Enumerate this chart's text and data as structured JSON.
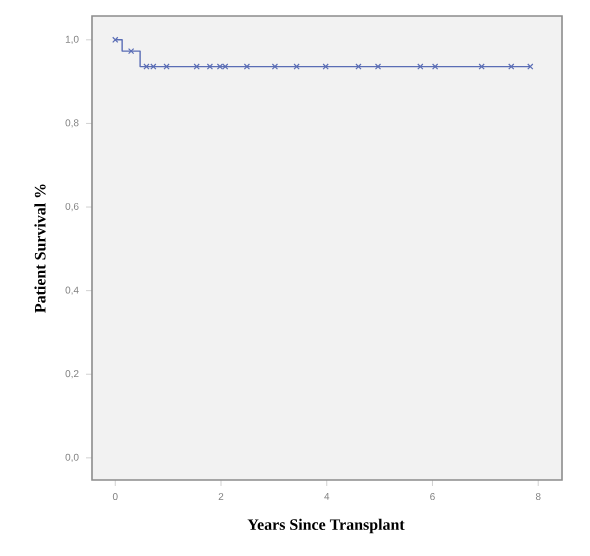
{
  "chart_data": {
    "type": "step",
    "xlabel": "Years Since Transplant",
    "ylabel": "Patient Survival %",
    "xlim": [
      -0.44,
      8.45
    ],
    "ylim": [
      -0.053,
      1.057
    ],
    "xticks": [
      0,
      2,
      4,
      6,
      8
    ],
    "yticks": [
      {
        "value": 0.0,
        "label": "0,0"
      },
      {
        "value": 0.2,
        "label": "0,2"
      },
      {
        "value": 0.4,
        "label": "0,4"
      },
      {
        "value": 0.6,
        "label": "0,6"
      },
      {
        "value": 0.8,
        "label": "0,8"
      },
      {
        "value": 1.0,
        "label": "1,0"
      }
    ],
    "grid": false,
    "series": [
      {
        "color": "#5a6db5",
        "marker": "none",
        "x": [
          0,
          0.13,
          0.47,
          7.85
        ],
        "values": [
          1.0,
          0.973,
          0.936,
          0.936
        ]
      },
      {
        "type": "scatter",
        "color": "#5a6db5",
        "marker": "cross",
        "x": [
          0,
          0.3,
          0.59,
          0.72,
          0.97,
          1.54,
          1.79,
          1.98,
          2.08,
          2.49,
          3.02,
          3.43,
          3.98,
          4.6,
          4.97,
          5.77,
          6.05,
          6.93,
          7.49,
          7.85
        ],
        "values": [
          1.0,
          0.973,
          0.936,
          0.936,
          0.936,
          0.936,
          0.936,
          0.936,
          0.936,
          0.936,
          0.936,
          0.936,
          0.936,
          0.936,
          0.936,
          0.936,
          0.936,
          0.936,
          0.936,
          0.936
        ]
      }
    ]
  }
}
